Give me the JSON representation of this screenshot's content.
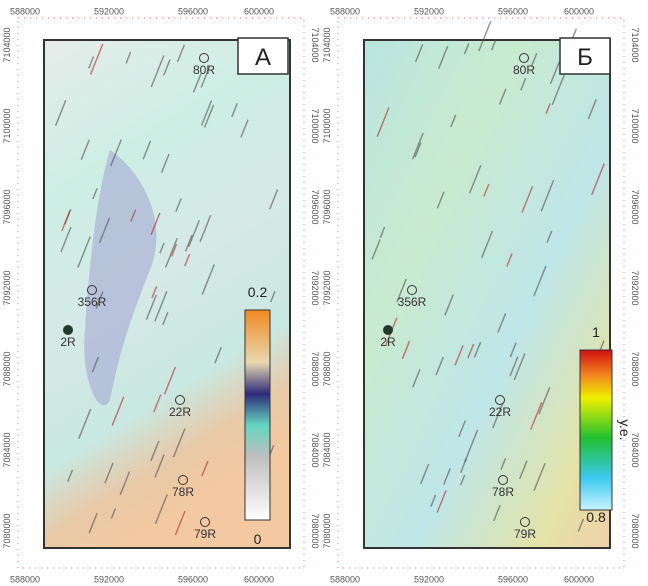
{
  "panels": [
    {
      "label": "А",
      "x_ticks": [
        588000,
        592000,
        596000,
        600000
      ],
      "y_ticks": [
        7104000,
        7100000,
        7096000,
        7092000,
        7088000,
        7084000,
        7080000
      ],
      "wells": [
        "80R",
        "356R",
        "2R",
        "22R",
        "78R",
        "79R"
      ],
      "colorbar": {
        "max": 0.2,
        "min": 0
      }
    },
    {
      "label": "Б",
      "x_ticks": [
        588000,
        592000,
        596000,
        600000
      ],
      "y_ticks": [
        7104000,
        7100000,
        7096000,
        7092000,
        7088000,
        7084000,
        7080000
      ],
      "wells": [
        "80R",
        "356R",
        "2R",
        "22R",
        "78R",
        "79R"
      ],
      "colorbar": {
        "max": 1,
        "min": 0.8,
        "unit": "у.е."
      }
    }
  ]
}
